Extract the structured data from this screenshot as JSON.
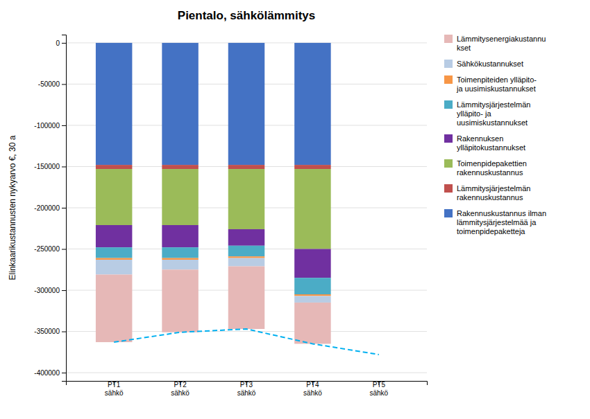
{
  "chart_data": {
    "type": "bar",
    "stacked": true,
    "title": "Pientalo, sähkölämmitys",
    "ylabel": "Elinkaarikustannusten nykyarvo €, 30 a",
    "categories": [
      "PT1\nsähkö",
      "PT2\nsähkö",
      "PT3\nsähkö",
      "PT4\nsähkö",
      "PT5\nsähkö"
    ],
    "series": [
      {
        "name": "Rakennuskustannus ilman\nlämmitysjärjestelmää ja\ntoimenpidepaketteja",
        "color": "#4472c4",
        "values": [
          -148000,
          -148000,
          -148000,
          -148000,
          0
        ]
      },
      {
        "name": "Lämmitysjärjestelmän\nrakennuskustannus",
        "color": "#c0504d",
        "values": [
          -5000,
          -5000,
          -5000,
          -5000,
          0
        ]
      },
      {
        "name": "Toimenpidepakettien\nrakennuskustannus",
        "color": "#9bbb59",
        "values": [
          -68000,
          -68000,
          -73000,
          -97000,
          0
        ]
      },
      {
        "name": "Rakennuksen\nylläpitokustannukset",
        "color": "#7030a0",
        "values": [
          -27000,
          -27000,
          -20000,
          -35000,
          0
        ]
      },
      {
        "name": "Lämmitysjärjestelmän\nylläpito- ja\nuusimiskustannukset",
        "color": "#4bacc6",
        "values": [
          -13000,
          -13000,
          -13000,
          -20000,
          0
        ]
      },
      {
        "name": "Toimenpiteiden ylläpito-\nja uusimiskustannukset",
        "color": "#f79646",
        "values": [
          -2000,
          -2000,
          -2000,
          -2000,
          0
        ]
      },
      {
        "name": "Sähkökustannukset",
        "color": "#b8cce4",
        "values": [
          -18000,
          -12000,
          -10000,
          -8000,
          0
        ]
      },
      {
        "name": "Lämmitysenergiakustannu\nkset",
        "color": "#e6b8b7",
        "values": [
          -82000,
          -76000,
          -76000,
          -50000,
          0
        ]
      },
      {
        "type": "line",
        "color": "#00b0f0",
        "line_style": "dashed",
        "values": [
          -363000,
          -351000,
          -347000,
          -365000,
          -378000
        ]
      }
    ],
    "ylim": [
      -410000,
      10000
    ],
    "yticks": [
      0,
      -50000,
      -100000,
      -150000,
      -200000,
      -250000,
      -300000,
      -350000,
      -400000
    ],
    "grid": true,
    "legend": "right"
  }
}
